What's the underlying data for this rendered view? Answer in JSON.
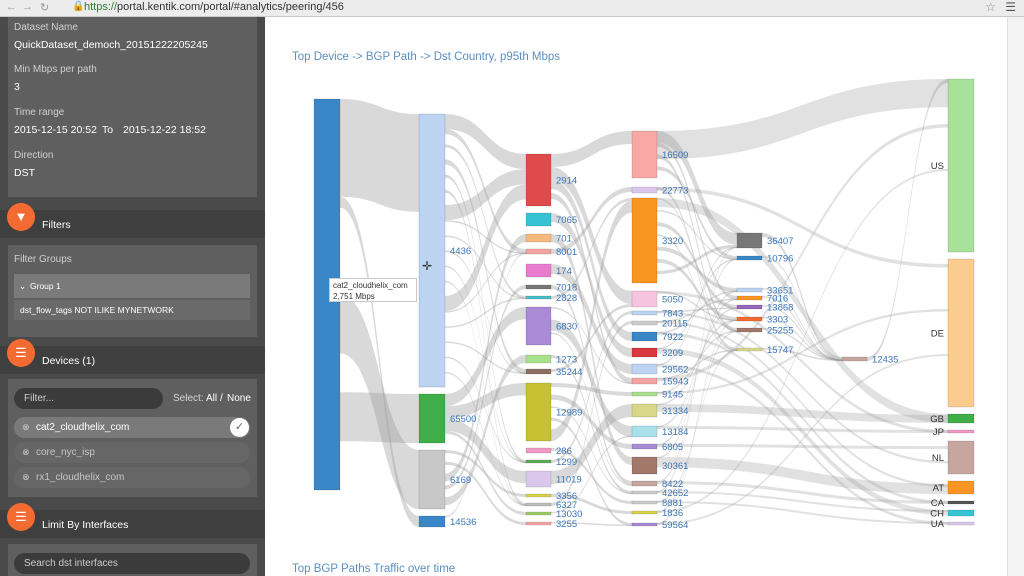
{
  "browser": {
    "url_scheme": "https://",
    "url_rest": "portal.kentik.com/portal/#analytics/peering/456"
  },
  "sidebar": {
    "dataset_label": "Dataset Name",
    "dataset_value": "QuickDataset_democh_20151222205245",
    "min_mbps_label": "Min Mbps per path",
    "min_mbps_value": "3",
    "time_range_label": "Time range",
    "time_from": "2015-12-15 20:52",
    "time_to_word": "To",
    "time_to": "2015-12-22 18:52",
    "direction_label": "Direction",
    "direction_value": "DST",
    "filters_title": "Filters",
    "filter_groups_label": "Filter Groups",
    "group_label": "Group 1",
    "filter_text": "dst_flow_tags NOT ILIKE MYNETWORK",
    "devices_title": "Devices (1)",
    "device_filter_placeholder": "Filter...",
    "select_label": "Select:",
    "select_all": "All",
    "select_sep": "/",
    "select_none": "None",
    "devices": [
      "cat2_cloudhelix_com",
      "core_nyc_isp",
      "rx1_cloudhelix_com"
    ],
    "limit_title": "Limit By Interfaces",
    "interface_search_placeholder": "Search dst interfaces"
  },
  "main": {
    "chart_title": "Top Device -> BGP Path -> Dst Country, p95th Mbps",
    "bottom_title": "Top BGP Paths Traffic over time",
    "tooltip_name": "cat2_cloudhelix_com",
    "tooltip_value": "2,751 Mbps"
  },
  "chart_data": {
    "type": "sankey",
    "columns": [
      {
        "nodes": [
          {
            "label": "",
            "color": "#3a87c8"
          }
        ]
      },
      {
        "nodes": [
          {
            "label": "4436",
            "color": "#bcd4f2"
          },
          {
            "label": "65500",
            "color": "#3fae49"
          },
          {
            "label": "6169",
            "color": "#c8c8c8"
          },
          {
            "label": "14536",
            "color": "#3a87c8"
          }
        ]
      },
      {
        "nodes": [
          {
            "label": "2914",
            "color": "#e04a4a"
          },
          {
            "label": "7065",
            "color": "#36c4d4"
          },
          {
            "label": "701",
            "color": "#f7b97d"
          },
          {
            "label": "8001",
            "color": "#f4a3a3"
          },
          {
            "label": "174",
            "color": "#e87dd0"
          },
          {
            "label": "7018",
            "color": "#777777"
          },
          {
            "label": "2828",
            "color": "#45c0c6"
          },
          {
            "label": "6830",
            "color": "#a98bd6"
          },
          {
            "label": "1273",
            "color": "#a8e08c"
          },
          {
            "label": "35244",
            "color": "#8d6e63"
          },
          {
            "label": "12989",
            "color": "#c6c232"
          },
          {
            "label": "286",
            "color": "#f29ac5"
          },
          {
            "label": "1299",
            "color": "#5cab57"
          },
          {
            "label": "11019",
            "color": "#d9c8ec"
          },
          {
            "label": "3356",
            "color": "#d8d24c"
          },
          {
            "label": "6327",
            "color": "#bdbdbd"
          },
          {
            "label": "13030",
            "color": "#9ccc65"
          },
          {
            "label": "3255",
            "color": "#f4a3a3"
          }
        ]
      },
      {
        "nodes": [
          {
            "label": "16509",
            "color": "#f8a9a5"
          },
          {
            "label": "22773",
            "color": "#d9c8ec"
          },
          {
            "label": "3320",
            "color": "#f99522"
          },
          {
            "label": "5050",
            "color": "#f7c4df"
          },
          {
            "label": "7843",
            "color": "#bcd4f2"
          },
          {
            "label": "20115",
            "color": "#ccc"
          },
          {
            "label": "7922",
            "color": "#3a87c8"
          },
          {
            "label": "3209",
            "color": "#d9393e"
          },
          {
            "label": "29562",
            "color": "#bcd4f2"
          },
          {
            "label": "15943",
            "color": "#f4a3a3"
          },
          {
            "label": "9145",
            "color": "#a8e08c"
          },
          {
            "label": "31334",
            "color": "#d8d88a"
          },
          {
            "label": "13184",
            "color": "#a9e0ea"
          },
          {
            "label": "6805",
            "color": "#a98bd6"
          },
          {
            "label": "30361",
            "color": "#a1786a"
          },
          {
            "label": "8422",
            "color": "#c7a6a0"
          },
          {
            "label": "42652",
            "color": "#cccccc"
          },
          {
            "label": "8881",
            "color": "#cccccc"
          },
          {
            "label": "1836",
            "color": "#d8d24c"
          },
          {
            "label": "59564",
            "color": "#a98bd6"
          }
        ]
      },
      {
        "nodes": [
          {
            "label": "36407",
            "color": "#777777"
          },
          {
            "label": "10796",
            "color": "#3a87c8"
          },
          {
            "label": "33651",
            "color": "#bcd4f2"
          },
          {
            "label": "7016",
            "color": "#f99522"
          },
          {
            "label": "13868",
            "color": "#9467bd"
          },
          {
            "label": "3303",
            "color": "#f36b31"
          },
          {
            "label": "25255",
            "color": "#a1786a"
          },
          {
            "label": "15747",
            "color": "#d8d88a"
          }
        ]
      },
      {
        "nodes": [
          {
            "label": "12435",
            "color": "#c7a6a0"
          }
        ]
      },
      {
        "nodes": [
          {
            "label": "US",
            "color": "#a8e29a"
          },
          {
            "label": "DE",
            "color": "#fccb8f"
          },
          {
            "label": "GB",
            "color": "#3fae49"
          },
          {
            "label": "JP",
            "color": "#f29ac5"
          },
          {
            "label": "NL",
            "color": "#c7a6a0"
          },
          {
            "label": "AT",
            "color": "#f99522"
          },
          {
            "label": "CA",
            "color": "#555555"
          },
          {
            "label": "CH",
            "color": "#36c4d4"
          },
          {
            "label": "UA",
            "color": "#d9c8ec"
          }
        ]
      }
    ]
  }
}
